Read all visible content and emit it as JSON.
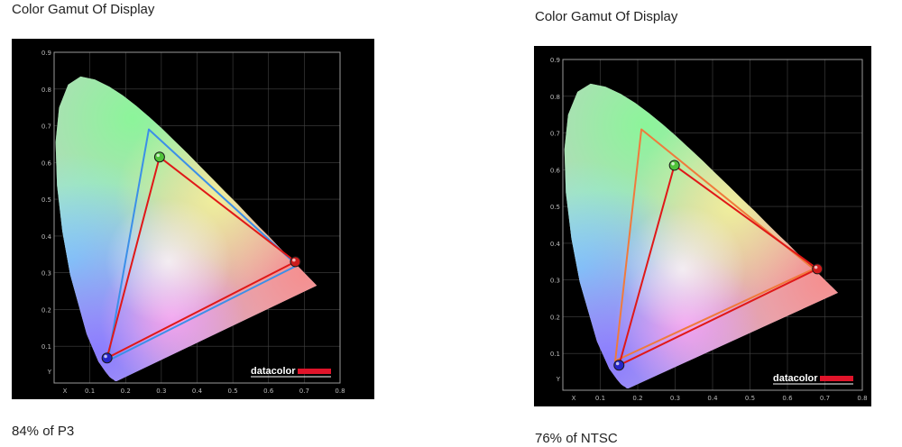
{
  "panels": [
    {
      "title": "Color Gamut Of Display",
      "caption": "84% of P3",
      "brand": "datacolor",
      "chart_data": {
        "type": "scatter",
        "title": "Color Gamut Of Display",
        "xlabel": "X",
        "ylabel": "Y",
        "xlim": [
          0,
          0.8
        ],
        "ylim": [
          0,
          0.9
        ],
        "x_ticks": [
          "X",
          "0.1",
          "0.2",
          "0.3",
          "0.4",
          "0.5",
          "0.6",
          "0.7",
          "0.8"
        ],
        "y_ticks": [
          "Y",
          "0.1",
          "0.2",
          "0.3",
          "0.4",
          "0.5",
          "0.6",
          "0.7",
          "0.8",
          "0.9"
        ],
        "grid": true,
        "series": [
          {
            "color": "#3b8fe8",
            "points": [
              [
                0.68,
                0.32
              ],
              [
                0.265,
                0.69
              ],
              [
                0.15,
                0.06
              ]
            ]
          },
          {
            "color": "#e01818",
            "points": [
              [
                0.675,
                0.33
              ],
              [
                0.295,
                0.615
              ],
              [
                0.148,
                0.068
              ]
            ]
          }
        ],
        "markers": [
          {
            "color": "#cc1c1c",
            "x": 0.675,
            "y": 0.33
          },
          {
            "color": "#4fc23a",
            "x": 0.295,
            "y": 0.615
          },
          {
            "color": "#2626c8",
            "x": 0.148,
            "y": 0.068
          }
        ]
      }
    },
    {
      "title": "Color Gamut Of Display",
      "caption": "76% of NTSC",
      "brand": "datacolor",
      "chart_data": {
        "type": "scatter",
        "title": "Color Gamut Of Display",
        "xlabel": "X",
        "ylabel": "Y",
        "xlim": [
          0,
          0.8
        ],
        "ylim": [
          0,
          0.9
        ],
        "x_ticks": [
          "X",
          "0.1",
          "0.2",
          "0.3",
          "0.4",
          "0.5",
          "0.6",
          "0.7",
          "0.8"
        ],
        "y_ticks": [
          "Y",
          "0.1",
          "0.2",
          "0.3",
          "0.4",
          "0.5",
          "0.6",
          "0.7",
          "0.8",
          "0.9"
        ],
        "grid": true,
        "series": [
          {
            "color": "#f07a3c",
            "points": [
              [
                0.67,
                0.33
              ],
              [
                0.21,
                0.71
              ],
              [
                0.14,
                0.08
              ]
            ]
          },
          {
            "color": "#e01818",
            "points": [
              [
                0.68,
                0.33
              ],
              [
                0.298,
                0.612
              ],
              [
                0.15,
                0.068
              ]
            ]
          }
        ],
        "markers": [
          {
            "color": "#cc1c1c",
            "x": 0.68,
            "y": 0.33
          },
          {
            "color": "#4fc23a",
            "x": 0.298,
            "y": 0.612
          },
          {
            "color": "#2626c8",
            "x": 0.15,
            "y": 0.068
          }
        ]
      }
    }
  ]
}
